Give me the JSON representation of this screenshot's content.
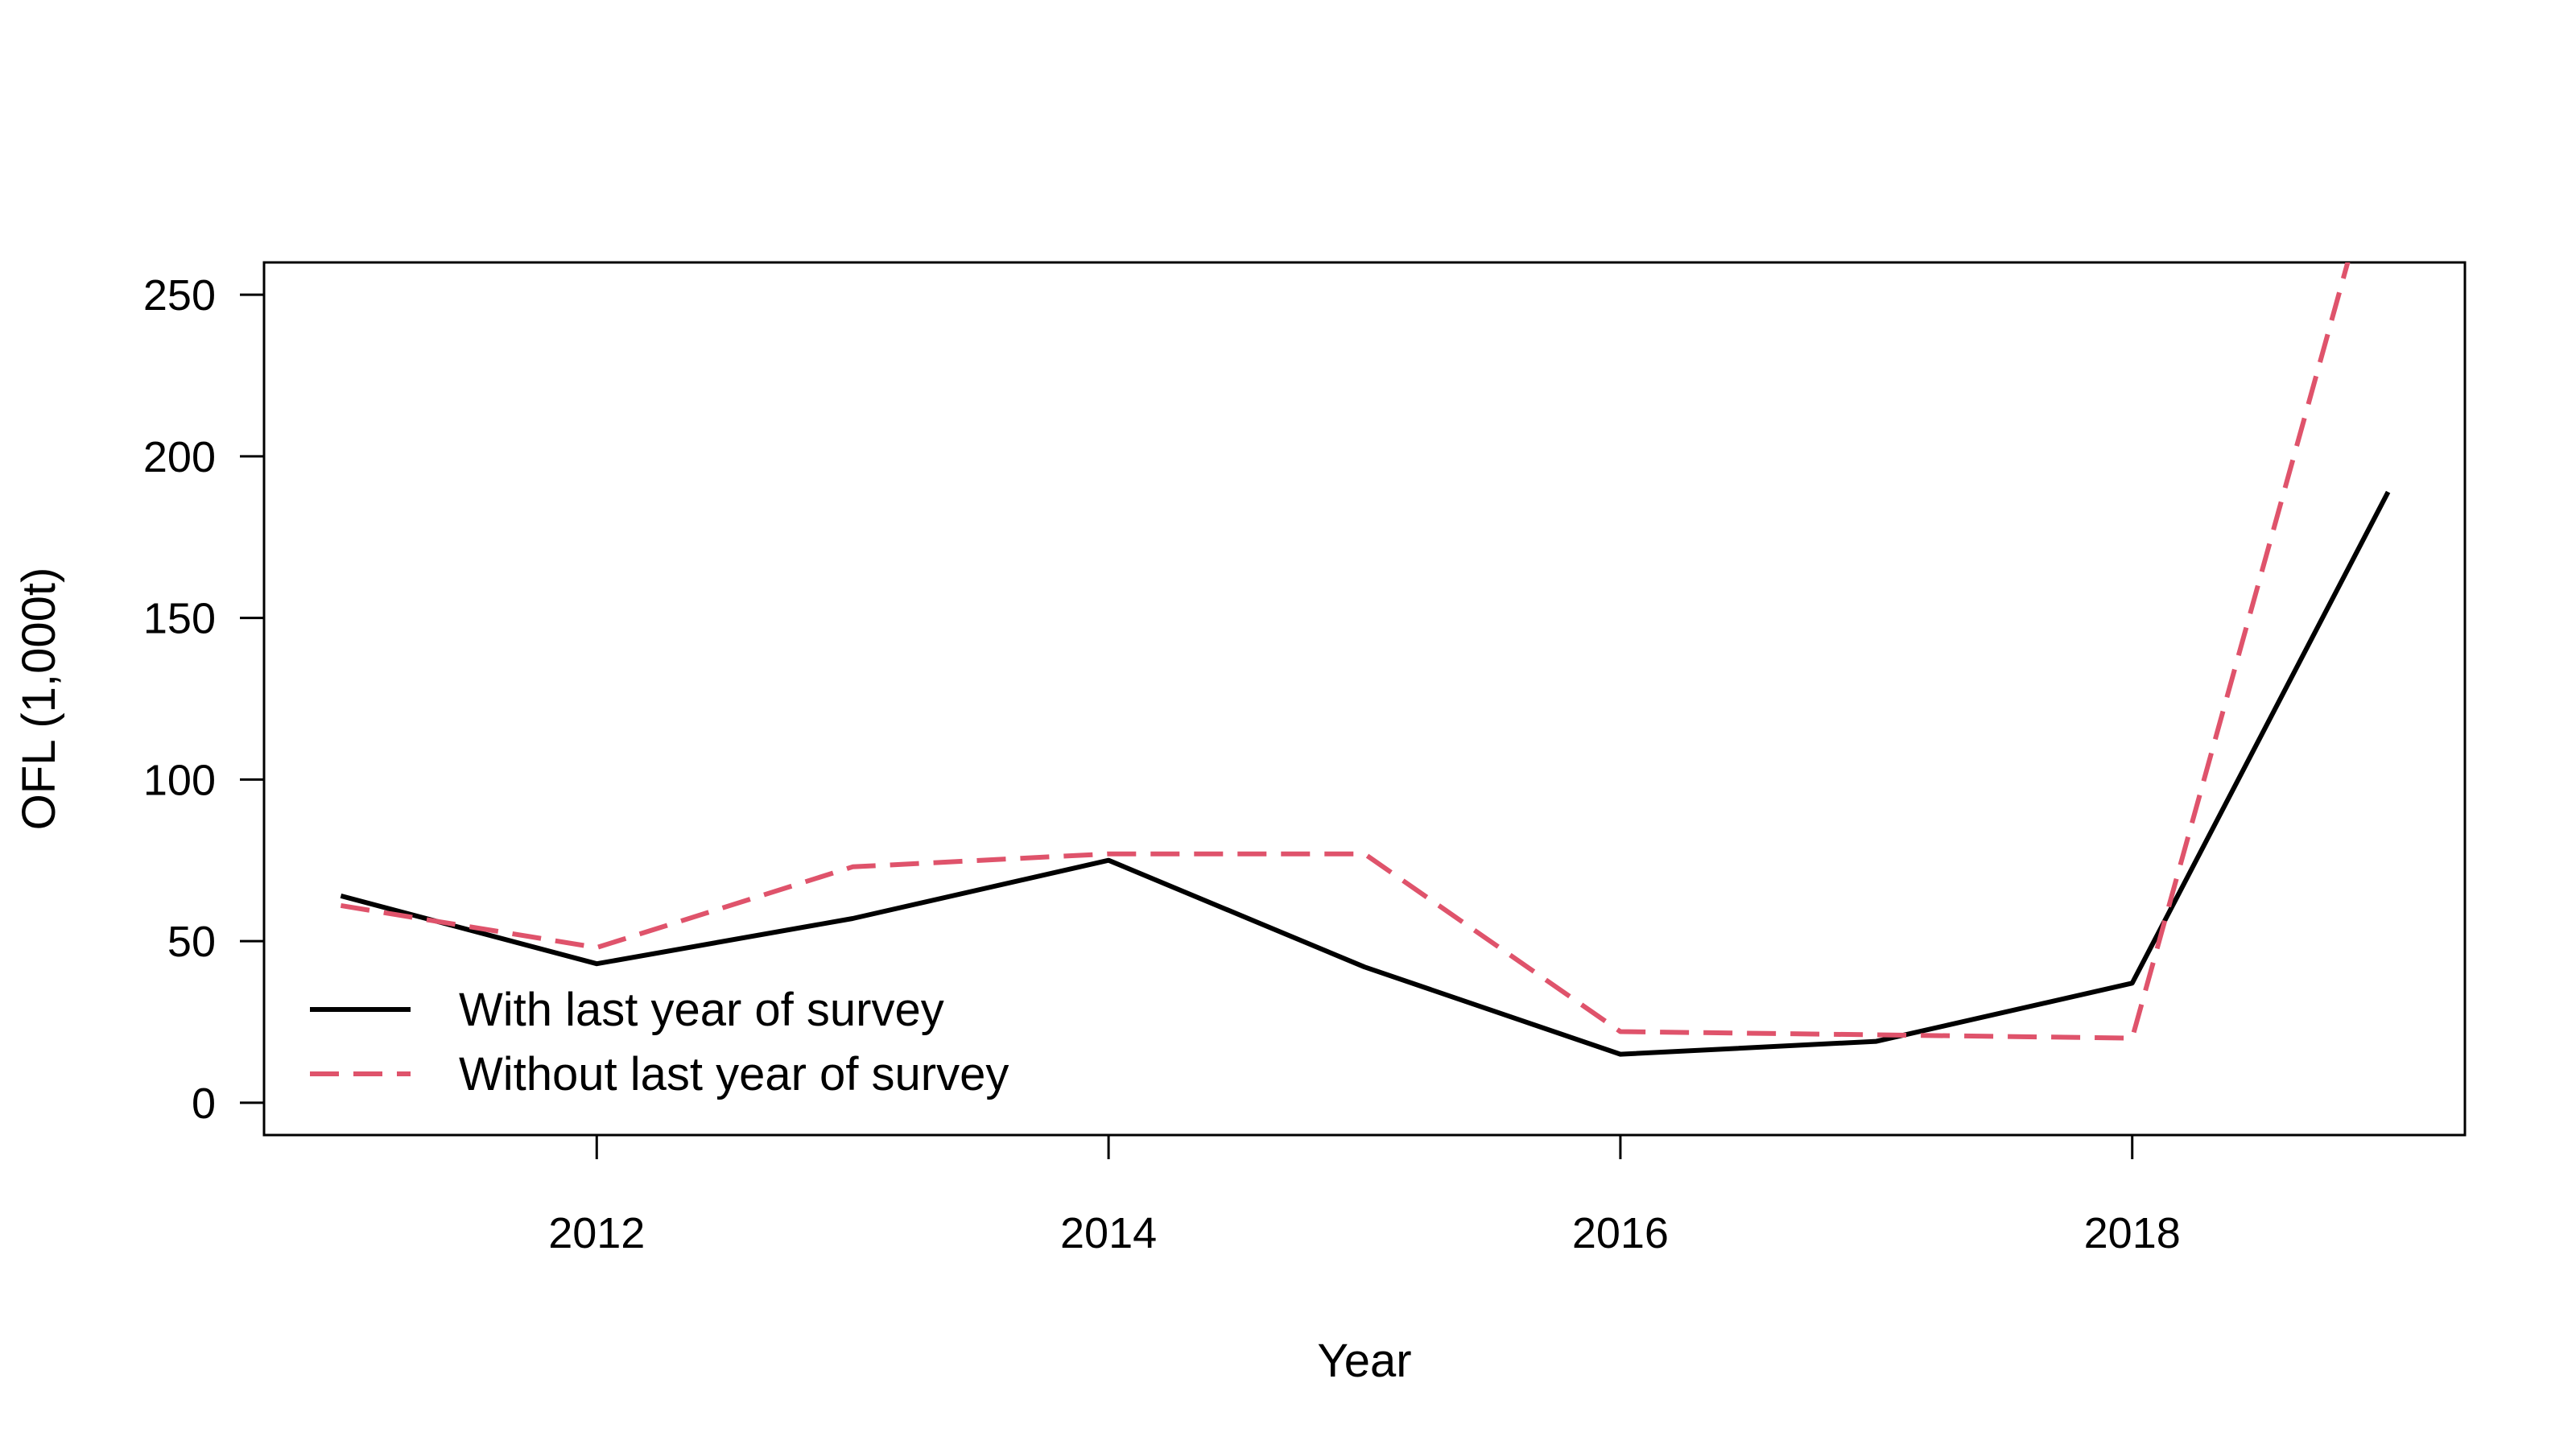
{
  "chart_data": {
    "type": "line",
    "title": "",
    "xlabel": "Year",
    "ylabel": "OFL (1,000t)",
    "xlim": [
      2010.7,
      2019.3
    ],
    "ylim": [
      -10,
      260
    ],
    "xticks": [
      2012,
      2014,
      2016,
      2018
    ],
    "yticks": [
      0,
      50,
      100,
      150,
      200,
      250
    ],
    "grid": false,
    "legend_position": "bottom-left",
    "x": [
      2011,
      2012,
      2013,
      2014,
      2015,
      2016,
      2017,
      2018,
      2019
    ],
    "series": [
      {
        "name": "With last year of survey",
        "color": "#000000",
        "dash": "solid",
        "values": [
          64,
          43,
          57,
          75,
          42,
          15,
          19,
          37,
          189
        ]
      },
      {
        "name": "Without last year of survey",
        "color": "#DF536B",
        "dash": "dashed",
        "values": [
          61,
          48,
          73,
          77,
          77,
          22,
          21,
          20,
          305
        ]
      }
    ]
  }
}
